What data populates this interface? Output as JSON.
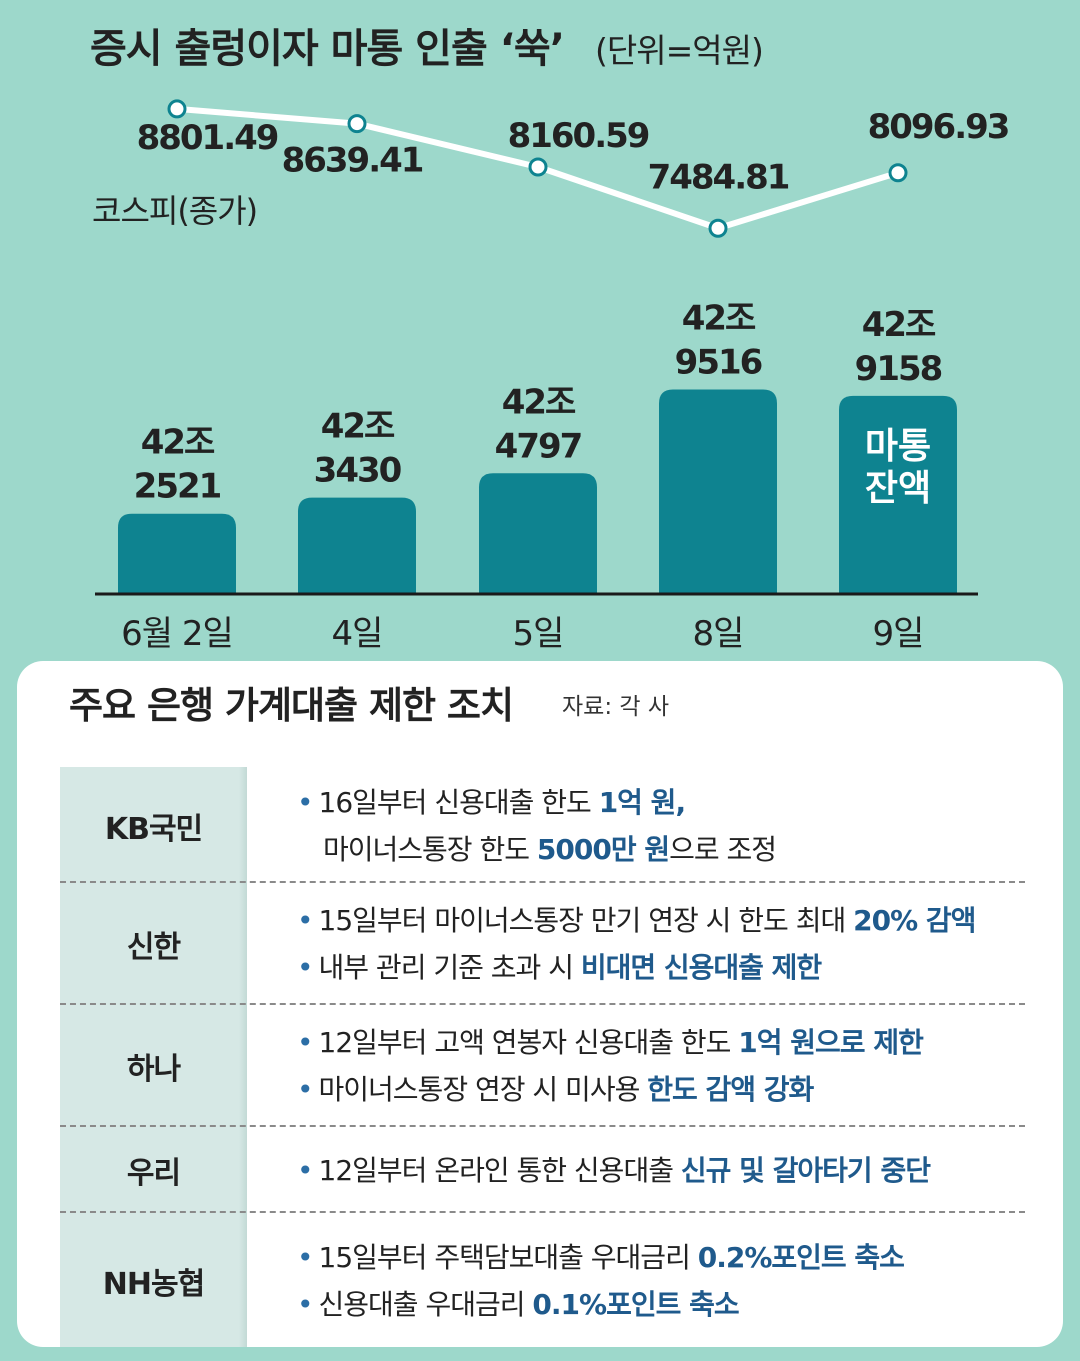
{
  "chart_data": {
    "title": "증시 출렁이자 마통 인출 ‘쑥’",
    "unit": "(단위=억원)",
    "categories": [
      "6월 2일",
      "4일",
      "5일",
      "8일",
      "9일"
    ],
    "line": {
      "name": "코스피(종가)",
      "type": "line",
      "values": [
        8801.49,
        8639.41,
        8160.59,
        7484.81,
        8096.93
      ],
      "labels": [
        "8801.49",
        "8639.41",
        "8160.59",
        "7484.81",
        "8096.93"
      ]
    },
    "bars": {
      "name": "마통 잔액",
      "type": "bar",
      "values": [
        422521,
        423430,
        424797,
        429516,
        429158
      ],
      "labels_top": [
        "42조",
        "42조",
        "42조",
        "42조",
        "42조"
      ],
      "labels_bottom": [
        "2521",
        "3430",
        "4797",
        "9516",
        "9158"
      ]
    },
    "colors": {
      "bar": "#0e8390",
      "line": "#ffffff",
      "background": "#9dd8cb",
      "text": "#222222"
    }
  },
  "table": {
    "title": "주요 은행 가계대출 제한 조치",
    "source": "자료: 각 사",
    "highlight_color": "#1f5a8c",
    "rows": [
      {
        "bank": "KB국민",
        "items": [
          {
            "plain": "16일부터 신용대출 한도 ",
            "hl": "1억 원,",
            "tail": ""
          },
          {
            "cont": true,
            "plain": "마이너스통장 한도 ",
            "hl": "5000만 원",
            "tail": "으로 조정"
          }
        ]
      },
      {
        "bank": "신한",
        "items": [
          {
            "plain": "15일부터 마이너스통장 만기 연장 시 한도 최대 ",
            "hl": "20% 감액",
            "tail": ""
          },
          {
            "plain": "내부 관리 기준 초과 시 ",
            "hl": "비대면 신용대출 제한",
            "tail": ""
          }
        ]
      },
      {
        "bank": "하나",
        "items": [
          {
            "plain": "12일부터 고액 연봉자 신용대출 한도 ",
            "hl": "1억 원으로 제한",
            "tail": ""
          },
          {
            "plain": "마이너스통장 연장 시 미사용 ",
            "hl": "한도 감액 강화",
            "tail": ""
          }
        ]
      },
      {
        "bank": "우리",
        "items": [
          {
            "plain": "12일부터 온라인 통한 신용대출 ",
            "hl": "신규 및 갈아타기 중단",
            "tail": ""
          }
        ]
      },
      {
        "bank": "NH농협",
        "items": [
          {
            "plain": "15일부터 주택담보대출 우대금리 ",
            "hl": "0.2%포인트 축소",
            "tail": ""
          },
          {
            "plain": "신용대출 우대금리 ",
            "hl": "0.1%포인트 축소",
            "tail": ""
          }
        ]
      }
    ]
  }
}
